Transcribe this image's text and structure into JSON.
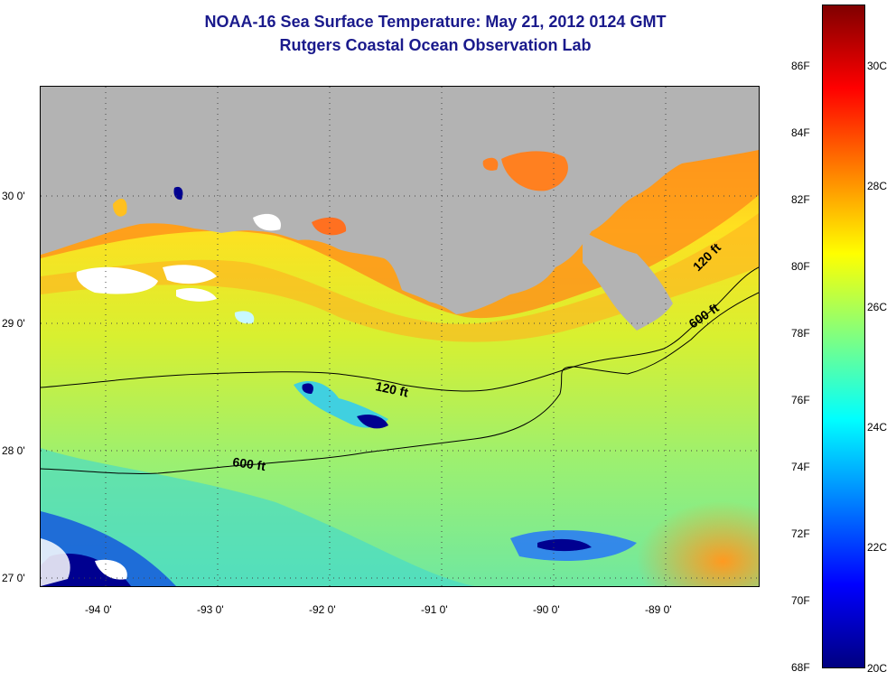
{
  "title": {
    "line1": "NOAA-16 Sea Surface Temperature:  May 21, 2012 0124 GMT",
    "line2": "Rutgers Coastal Ocean Observation Lab"
  },
  "map": {
    "latitude_labels": [
      "30 0'",
      "29 0'",
      "28 0'",
      "27 0'"
    ],
    "longitude_labels": [
      "-94 0'",
      "-93 0'",
      "-92 0'",
      "-91 0'",
      "-90 0'",
      "-89 0'"
    ],
    "isobath_labels": [
      "120 ft",
      "600 ft",
      "120 ft",
      "600 ft"
    ],
    "land_color": "#b3b3b3",
    "cloud_color": "#ffffff"
  },
  "colorbar": {
    "fahrenheit_labels": [
      "86F",
      "84F",
      "82F",
      "80F",
      "78F",
      "76F",
      "74F",
      "72F",
      "70F",
      "68F"
    ],
    "celsius_labels": [
      "30C",
      "28C",
      "26C",
      "24C",
      "22C",
      "20C"
    ],
    "colors": [
      "#800000",
      "#ff0000",
      "#ff8000",
      "#ffff00",
      "#80ff80",
      "#00ffff",
      "#0080ff",
      "#0000ff",
      "#000080"
    ]
  }
}
